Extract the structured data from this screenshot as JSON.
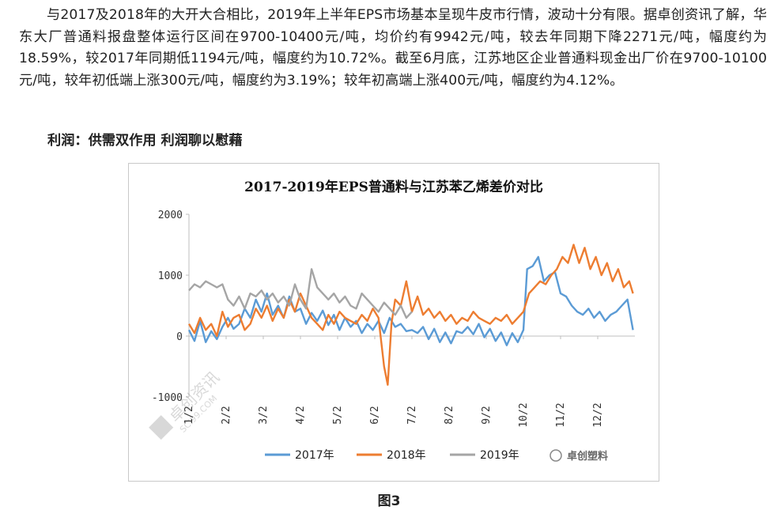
{
  "paragraph": "与2017及2018年的大开大合相比，2019年上半年EPS市场基本呈现牛皮市行情，波动十分有限。据卓创资讯了解，华东大厂普通料报盘整体运行区间在9700-10400元/吨，均价约有9942元/吨，较去年同期下降2271元/吨，幅度约为18.59%，较2017年同期低1194元/吨，幅度约为10.72%。截至6月底，江苏地区企业普通料现金出厂价在9700-10100元/吨，较年初低端上涨300元/吨，幅度约为3.19%；较年初高端上涨400元/吨，幅度约为4.12%。",
  "heading": "利润：供需双作用 利润聊以慰藉",
  "caption": "图3",
  "watermark": {
    "brand": "卓创塑料",
    "diagonal": "卓创资讯",
    "site": "SCI99.COM"
  },
  "chart_data": {
    "type": "line",
    "title": "2017-2019年EPS普通料与江苏苯乙烯差价对比",
    "categories": [
      "1/2",
      "2/2",
      "3/2",
      "4/2",
      "5/2",
      "6/2",
      "7/2",
      "8/2",
      "9/2",
      "10/2",
      "11/2",
      "12/2"
    ],
    "ylim": [
      -1000,
      2000
    ],
    "yticks": [
      2000,
      1000,
      0,
      -1000
    ],
    "legend_position": "bottom",
    "series": [
      {
        "name": "2017年",
        "color": "#5b9bd5",
        "x": [
          0.0,
          0.15,
          0.3,
          0.45,
          0.6,
          0.75,
          0.9,
          1.05,
          1.2,
          1.35,
          1.5,
          1.65,
          1.8,
          1.95,
          2.1,
          2.25,
          2.4,
          2.55,
          2.7,
          2.85,
          3.0,
          3.15,
          3.3,
          3.45,
          3.6,
          3.75,
          3.9,
          4.05,
          4.2,
          4.35,
          4.5,
          4.65,
          4.8,
          4.95,
          5.1,
          5.25,
          5.4,
          5.55,
          5.7,
          5.85,
          6.0,
          6.15,
          6.3,
          6.45,
          6.6,
          6.75,
          6.9,
          7.05,
          7.2,
          7.35,
          7.5,
          7.65,
          7.8,
          7.95,
          8.1,
          8.25,
          8.4,
          8.55,
          8.7,
          8.85,
          9.0,
          9.1,
          9.25,
          9.4,
          9.55,
          9.7,
          9.85,
          10.0,
          10.15,
          10.3,
          10.45,
          10.6,
          10.75,
          10.9,
          11.05,
          11.2,
          11.35,
          11.5,
          11.65,
          11.8,
          11.95
        ],
        "y": [
          100,
          -80,
          250,
          -100,
          80,
          -50,
          150,
          300,
          120,
          200,
          450,
          300,
          600,
          400,
          700,
          350,
          500,
          300,
          650,
          400,
          450,
          200,
          380,
          250,
          420,
          180,
          350,
          100,
          300,
          150,
          250,
          50,
          200,
          100,
          250,
          50,
          300,
          150,
          200,
          80,
          100,
          50,
          150,
          -50,
          120,
          -100,
          60,
          -120,
          80,
          50,
          150,
          30,
          200,
          -20,
          120,
          -80,
          60,
          -150,
          50,
          -100,
          100,
          1100,
          1150,
          1300,
          900,
          1000,
          1050,
          700,
          650,
          500,
          400,
          350,
          450,
          300,
          400,
          250,
          350,
          400,
          500,
          600,
          100
        ]
      },
      {
        "name": "2018年",
        "color": "#ed7d31",
        "x": [
          0.0,
          0.15,
          0.3,
          0.45,
          0.6,
          0.75,
          0.9,
          1.05,
          1.2,
          1.35,
          1.5,
          1.65,
          1.8,
          1.95,
          2.1,
          2.25,
          2.4,
          2.55,
          2.7,
          2.85,
          3.0,
          3.15,
          3.3,
          3.45,
          3.6,
          3.75,
          3.9,
          4.05,
          4.2,
          4.35,
          4.5,
          4.65,
          4.8,
          4.95,
          5.1,
          5.25,
          5.35,
          5.45,
          5.55,
          5.7,
          5.85,
          6.0,
          6.15,
          6.3,
          6.45,
          6.6,
          6.75,
          6.9,
          7.05,
          7.2,
          7.35,
          7.5,
          7.65,
          7.8,
          7.95,
          8.1,
          8.25,
          8.4,
          8.55,
          8.7,
          8.85,
          9.0,
          9.15,
          9.3,
          9.45,
          9.6,
          9.75,
          9.9,
          10.05,
          10.2,
          10.35,
          10.5,
          10.65,
          10.8,
          10.95,
          11.1,
          11.25,
          11.4,
          11.55,
          11.7,
          11.85,
          11.95
        ],
        "y": [
          200,
          50,
          300,
          100,
          200,
          0,
          400,
          150,
          300,
          350,
          100,
          200,
          450,
          300,
          500,
          250,
          450,
          300,
          600,
          400,
          700,
          500,
          300,
          200,
          100,
          350,
          200,
          400,
          300,
          250,
          200,
          350,
          250,
          450,
          300,
          -500,
          -800,
          200,
          600,
          500,
          900,
          400,
          650,
          350,
          450,
          300,
          400,
          250,
          350,
          200,
          300,
          250,
          400,
          300,
          250,
          200,
          300,
          250,
          350,
          200,
          300,
          400,
          700,
          800,
          900,
          850,
          1000,
          1100,
          1300,
          1200,
          1500,
          1200,
          1450,
          1100,
          1300,
          1000,
          1200,
          900,
          1100,
          800,
          900,
          700
        ]
      },
      {
        "name": "2019年",
        "color": "#a5a5a5",
        "x": [
          0.0,
          0.15,
          0.3,
          0.45,
          0.6,
          0.75,
          0.9,
          1.05,
          1.2,
          1.35,
          1.5,
          1.65,
          1.8,
          1.95,
          2.1,
          2.25,
          2.4,
          2.55,
          2.7,
          2.85,
          3.0,
          3.15,
          3.3,
          3.45,
          3.6,
          3.75,
          3.9,
          4.05,
          4.2,
          4.35,
          4.5,
          4.65,
          4.8,
          4.95,
          5.1,
          5.25,
          5.4,
          5.55,
          5.7,
          5.85,
          6.0
        ],
        "y": [
          750,
          850,
          800,
          900,
          850,
          800,
          850,
          600,
          500,
          650,
          450,
          700,
          650,
          750,
          600,
          700,
          550,
          650,
          500,
          850,
          600,
          450,
          1100,
          800,
          700,
          600,
          700,
          550,
          650,
          500,
          450,
          700,
          600,
          500,
          400,
          550,
          450,
          350,
          500,
          300,
          400
        ]
      }
    ]
  }
}
